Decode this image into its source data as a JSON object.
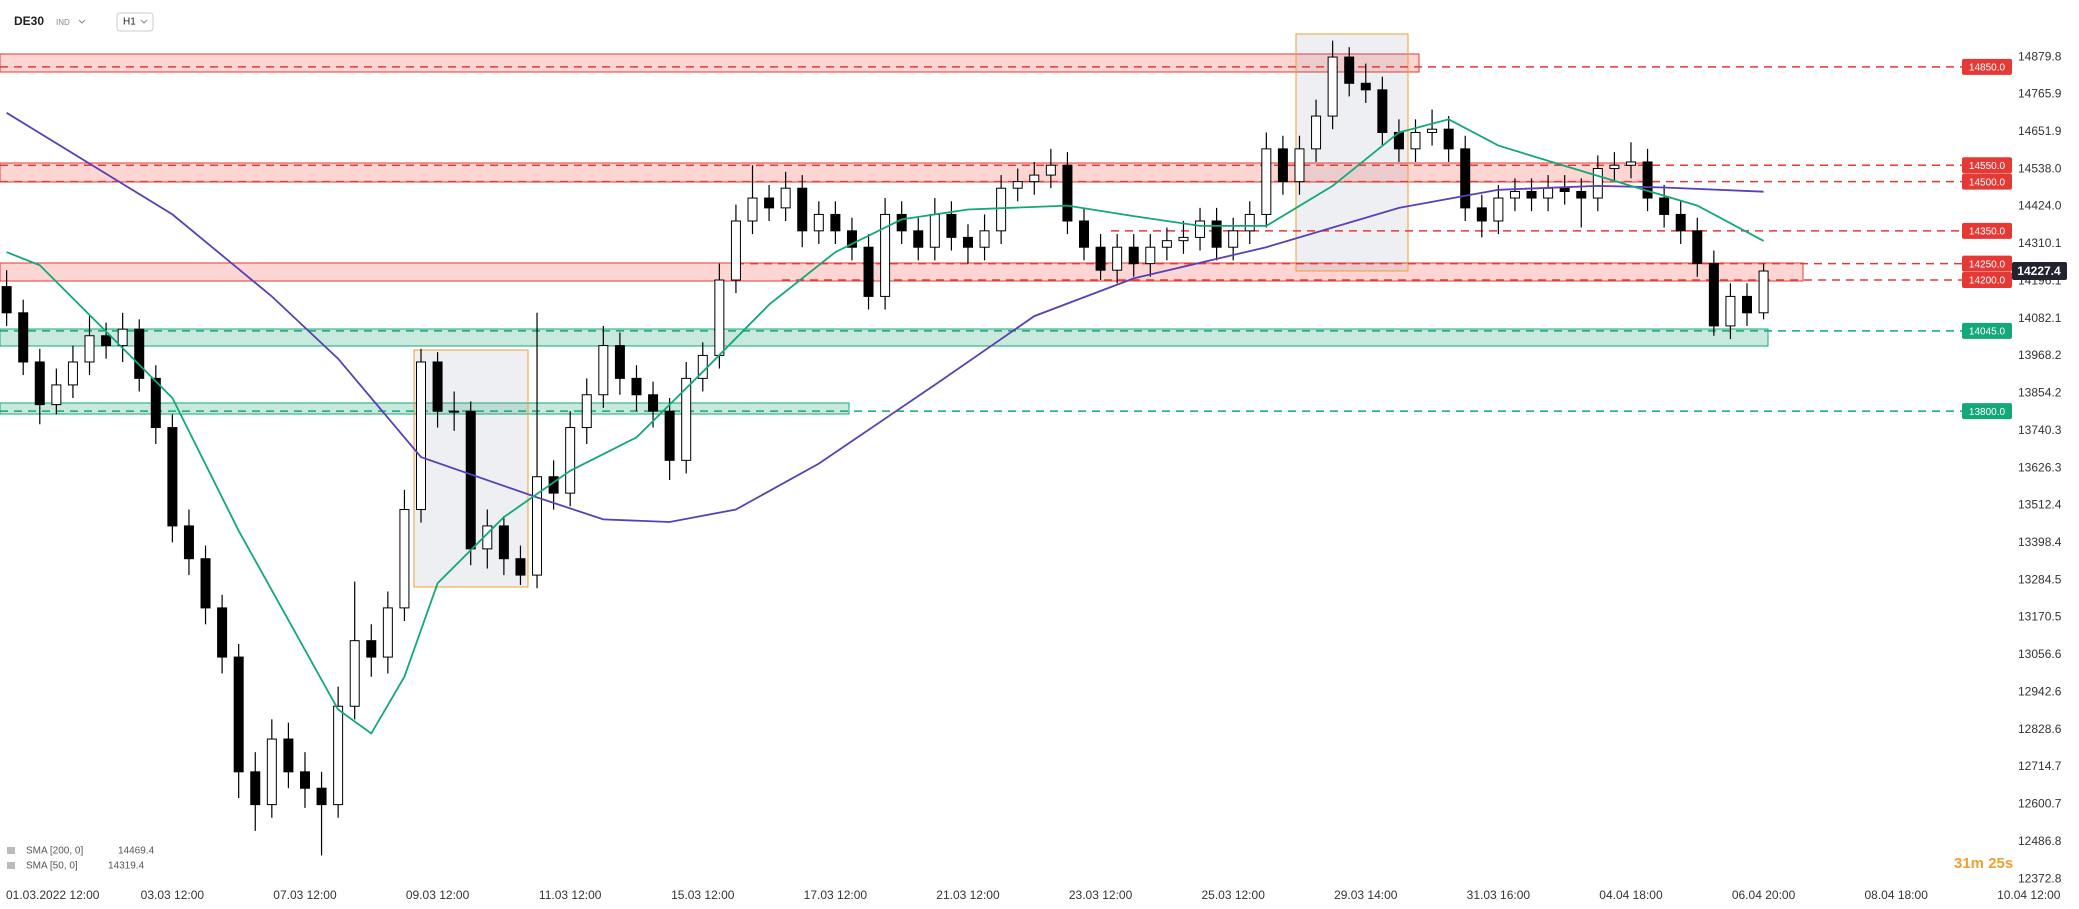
{
  "header": {
    "symbol": "DE30",
    "market": "IND",
    "interval": "H1"
  },
  "countdown": "31m 25s",
  "chart_data": {
    "type": "candlestick",
    "color": "#000000",
    "ylim": [
      12364,
      15054
    ],
    "grid": false,
    "yticks": [
      14879.8,
      14765.9,
      14651.9,
      {
        "value": 14538,
        "label": "14538.0"
      },
      {
        "value": 14424,
        "label": "14424.0"
      },
      14310.1,
      14196.1,
      14082.1,
      13968.2,
      13854.2,
      13740.3,
      13626.3,
      13512.4,
      13398.4,
      13284.5,
      13170.5,
      13056.6,
      12942.6,
      12828.6,
      12714.7,
      12600.7,
      12486.8,
      12372.8
    ],
    "categories": [
      null,
      null,
      "01.03.2022 12:00",
      null,
      null,
      null,
      null,
      null,
      null,
      null,
      "03.03 12:00",
      null,
      null,
      null,
      null,
      null,
      null,
      null,
      "07.03 12:00",
      null,
      null,
      null,
      null,
      null,
      null,
      null,
      "09.03 12:00",
      null,
      null,
      null,
      null,
      null,
      null,
      null,
      "11.03 12:00",
      null,
      null,
      null,
      null,
      null,
      null,
      null,
      "15.03 12:00",
      null,
      null,
      null,
      null,
      null,
      null,
      null,
      "17.03 12:00",
      null,
      null,
      null,
      null,
      null,
      null,
      null,
      "21.03 12:00",
      null,
      null,
      null,
      null,
      null,
      null,
      null,
      "23.03 12:00",
      null,
      null,
      null,
      null,
      null,
      null,
      null,
      "25.03 12:00",
      null,
      null,
      null,
      null,
      null,
      null,
      null,
      "29.03 14:00",
      null,
      null,
      null,
      null,
      null,
      null,
      null,
      "31.03 16:00",
      null,
      null,
      null,
      null,
      null,
      null,
      null,
      "04.04 18:00",
      null,
      null,
      null,
      null,
      null,
      null,
      null,
      "06.04 20:00",
      null,
      null,
      null,
      null,
      null,
      null,
      null,
      "08.04 18:00",
      null,
      null,
      null,
      null,
      null,
      null,
      null,
      "10.04 12:00"
    ],
    "ohlc": [
      [
        14180,
        14230,
        14060,
        14100
      ],
      [
        14100,
        14140,
        13910,
        13950
      ],
      [
        13950,
        13990,
        13760,
        13820
      ],
      [
        13820,
        13930,
        13790,
        13880
      ],
      [
        13880,
        14000,
        13840,
        13950
      ],
      [
        13950,
        14090,
        13910,
        14030
      ],
      [
        14030,
        14070,
        13960,
        14000
      ],
      [
        14000,
        14100,
        13950,
        14050
      ],
      [
        14050,
        14080,
        13860,
        13900
      ],
      [
        13900,
        13940,
        13700,
        13750
      ],
      [
        13750,
        13790,
        13400,
        13450
      ],
      [
        13450,
        13500,
        13300,
        13350
      ],
      [
        13350,
        13390,
        13150,
        13200
      ],
      [
        13200,
        13240,
        13000,
        13050
      ],
      [
        13050,
        13090,
        12620,
        12700
      ],
      [
        12700,
        12760,
        12520,
        12600
      ],
      [
        12600,
        12860,
        12560,
        12800
      ],
      [
        12800,
        12850,
        12650,
        12700
      ],
      [
        12700,
        12760,
        12590,
        12650
      ],
      [
        12650,
        12700,
        12445,
        12600
      ],
      [
        12600,
        12960,
        12560,
        12900
      ],
      [
        12900,
        13280,
        12860,
        13100
      ],
      [
        13100,
        13150,
        12990,
        13050
      ],
      [
        13050,
        13250,
        13000,
        13200
      ],
      [
        13200,
        13560,
        13160,
        13500
      ],
      [
        13500,
        13990,
        13460,
        13950
      ],
      [
        13950,
        13980,
        13750,
        13800
      ],
      [
        13800,
        13860,
        13740,
        13800
      ],
      [
        13800,
        13830,
        13330,
        13380
      ],
      [
        13380,
        13500,
        13320,
        13450
      ],
      [
        13450,
        13480,
        13300,
        13350
      ],
      [
        13350,
        13390,
        13270,
        13300
      ],
      [
        13300,
        14100,
        13260,
        13600
      ],
      [
        13600,
        13650,
        13500,
        13550
      ],
      [
        13550,
        13800,
        13510,
        13750
      ],
      [
        13750,
        13900,
        13700,
        13850
      ],
      [
        13850,
        14060,
        13810,
        14000
      ],
      [
        14000,
        14040,
        13850,
        13900
      ],
      [
        13900,
        13940,
        13800,
        13850
      ],
      [
        13850,
        13890,
        13750,
        13800
      ],
      [
        13800,
        13840,
        13590,
        13650
      ],
      [
        13650,
        13950,
        13610,
        13900
      ],
      [
        13900,
        14010,
        13860,
        13970
      ],
      [
        13970,
        14250,
        13930,
        14200
      ],
      [
        14200,
        14430,
        14160,
        14380
      ],
      [
        14380,
        14550,
        14340,
        14450
      ],
      [
        14450,
        14490,
        14380,
        14420
      ],
      [
        14420,
        14530,
        14380,
        14480
      ],
      [
        14480,
        14520,
        14300,
        14350
      ],
      [
        14350,
        14440,
        14310,
        14400
      ],
      [
        14400,
        14440,
        14310,
        14350
      ],
      [
        14350,
        14390,
        14260,
        14300
      ],
      [
        14300,
        14340,
        14110,
        14150
      ],
      [
        14150,
        14450,
        14110,
        14400
      ],
      [
        14400,
        14440,
        14310,
        14350
      ],
      [
        14350,
        14390,
        14260,
        14300
      ],
      [
        14300,
        14450,
        14260,
        14400
      ],
      [
        14400,
        14440,
        14290,
        14330
      ],
      [
        14330,
        14370,
        14250,
        14300
      ],
      [
        14300,
        14400,
        14260,
        14350
      ],
      [
        14350,
        14520,
        14310,
        14480
      ],
      [
        14480,
        14540,
        14440,
        14500
      ],
      [
        14500,
        14560,
        14460,
        14520
      ],
      [
        14520,
        14600,
        14480,
        14550
      ],
      [
        14550,
        14590,
        14340,
        14380
      ],
      [
        14380,
        14420,
        14260,
        14300
      ],
      [
        14300,
        14340,
        14200,
        14230
      ],
      [
        14230,
        14340,
        14190,
        14300
      ],
      [
        14300,
        14340,
        14210,
        14250
      ],
      [
        14250,
        14340,
        14210,
        14300
      ],
      [
        14300,
        14360,
        14260,
        14320
      ],
      [
        14320,
        14380,
        14280,
        14330
      ],
      [
        14330,
        14420,
        14290,
        14380
      ],
      [
        14380,
        14420,
        14260,
        14300
      ],
      [
        14300,
        14390,
        14260,
        14350
      ],
      [
        14350,
        14440,
        14310,
        14400
      ],
      [
        14400,
        14650,
        14360,
        14600
      ],
      [
        14600,
        14640,
        14460,
        14500
      ],
      [
        14500,
        14640,
        14460,
        14600
      ],
      [
        14600,
        14750,
        14560,
        14700
      ],
      [
        14700,
        14930,
        14660,
        14880
      ],
      [
        14880,
        14910,
        14760,
        14800
      ],
      [
        14800,
        14860,
        14740,
        14780
      ],
      [
        14780,
        14820,
        14610,
        14650
      ],
      [
        14650,
        14690,
        14560,
        14600
      ],
      [
        14600,
        14690,
        14560,
        14650
      ],
      [
        14650,
        14720,
        14610,
        14660
      ],
      [
        14660,
        14700,
        14560,
        14600
      ],
      [
        14600,
        14640,
        14380,
        14420
      ],
      [
        14420,
        14460,
        14330,
        14380
      ],
      [
        14380,
        14490,
        14340,
        14450
      ],
      [
        14450,
        14510,
        14410,
        14470
      ],
      [
        14470,
        14510,
        14410,
        14450
      ],
      [
        14450,
        14520,
        14410,
        14480
      ],
      [
        14480,
        14520,
        14430,
        14470
      ],
      [
        14470,
        14510,
        14360,
        14450
      ],
      [
        14450,
        14580,
        14410,
        14540
      ],
      [
        14540,
        14590,
        14500,
        14550
      ],
      [
        14550,
        14620,
        14510,
        14560
      ],
      [
        14560,
        14600,
        14410,
        14450
      ],
      [
        14450,
        14490,
        14360,
        14400
      ],
      [
        14400,
        14440,
        14310,
        14350
      ],
      [
        14350,
        14390,
        14210,
        14250
      ],
      [
        14250,
        14290,
        14030,
        14060
      ],
      [
        14060,
        14190,
        14020,
        14150
      ],
      [
        14150,
        14190,
        14060,
        14100
      ],
      [
        14100,
        14250,
        14080,
        14227.4
      ],
      null,
      null,
      null,
      null,
      null,
      null,
      null,
      null,
      null,
      null,
      null,
      null,
      null,
      null,
      null,
      null
    ],
    "series": [
      {
        "name": "SMA [200, 0]",
        "color": "#5b3fb5",
        "x": [
          0,
          10,
          16,
          20,
          25,
          32,
          36,
          40,
          44,
          49,
          56,
          62,
          68,
          76,
          84,
          90,
          96,
          100,
          106
        ],
        "values": [
          14710,
          14400,
          14150,
          13960,
          13660,
          13537,
          13470,
          13462,
          13500,
          13640,
          13880,
          14090,
          14205,
          14300,
          14420,
          14475,
          14487,
          14482,
          14469.4
        ]
      },
      {
        "name": "SMA [50, 0]",
        "color": "#12a878",
        "x": [
          0,
          2,
          6,
          10,
          14,
          18,
          20,
          22,
          24,
          26,
          30,
          34,
          38,
          42,
          46,
          50,
          54,
          58,
          64,
          68,
          72,
          76,
          80,
          84,
          87,
          90,
          94,
          98,
          102,
          106
        ],
        "values": [
          14285,
          14245,
          14043,
          13840,
          13435,
          13072,
          12890,
          12817,
          12990,
          13275,
          13477,
          13618,
          13720,
          13920,
          14125,
          14285,
          14385,
          14415,
          14427,
          14395,
          14365,
          14365,
          14487,
          14650,
          14690,
          14610,
          14548,
          14487,
          14427,
          14319.4
        ]
      }
    ],
    "levels": [
      {
        "value": 14850,
        "label": "14850.0",
        "color": "#e53935"
      },
      {
        "value": 14550,
        "label": "14550.0",
        "color": "#e53935"
      },
      {
        "value": 14500,
        "label": "14500.0",
        "color": "#e53935"
      },
      {
        "value": 14350,
        "label": "14350.0",
        "color": "#e53935"
      },
      {
        "value": 14250,
        "label": "14250.0",
        "color": "#e53935"
      },
      {
        "value": 14200,
        "label": "14200.0",
        "color": "#e53935"
      },
      {
        "value": 14045,
        "label": "14045.0",
        "color": "#12a878"
      },
      {
        "value": 13800,
        "label": "13800.0",
        "color": "#12a878"
      }
    ],
    "current_price": 14227.4
  }
}
